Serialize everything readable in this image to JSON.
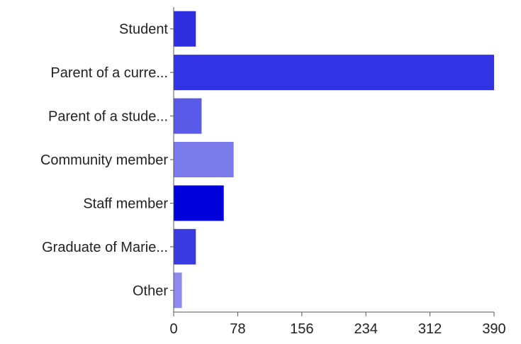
{
  "chart_data": {
    "type": "bar",
    "orientation": "horizontal",
    "categories": [
      "Student",
      "Parent of a curre...",
      "Parent of a stude...",
      "Community member",
      "Staff member",
      "Graduate of Marie...",
      "Other"
    ],
    "values": [
      27,
      390,
      34,
      73,
      61,
      27,
      10
    ],
    "bar_colors": [
      "#2f2fe0",
      "#3333e6",
      "#5a5ae8",
      "#7b7bec",
      "#0000dd",
      "#3a3ae2",
      "#8c8cf0"
    ],
    "xlim": [
      0,
      390
    ],
    "x_ticks": [
      0,
      78,
      156,
      234,
      312,
      390
    ],
    "grid": false,
    "title": "",
    "xlabel": "",
    "ylabel": ""
  }
}
